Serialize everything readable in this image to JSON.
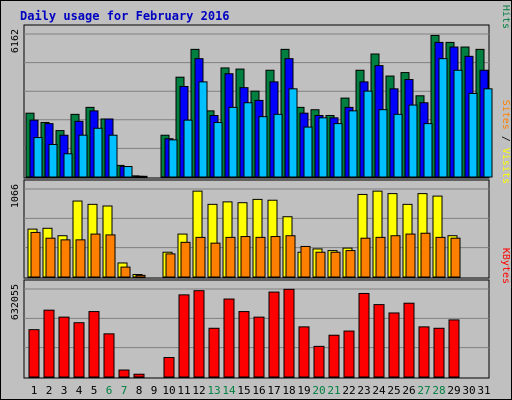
{
  "title": "Daily usage for February 2016",
  "colors": {
    "background": "#c0c0c0",
    "plot_bg": "#c0c0c0",
    "title": "#0000c0",
    "hits": "#008040",
    "files": "#0000ff",
    "pages": "#00c0ff",
    "visits": "#ffff00",
    "sites": "#ff8000",
    "kbytes": "#ff0000",
    "weekend_day": "#008040",
    "weekday": "#000000"
  },
  "chart_data": [
    {
      "type": "bar",
      "panel": "hits-files-pages",
      "ymax_label": "6162",
      "ylim": [
        0,
        6162
      ],
      "series_labels": [
        "Pages",
        "Files",
        "Hits"
      ],
      "categories": [
        "1",
        "2",
        "3",
        "4",
        "5",
        "6",
        "7",
        "8",
        "9",
        "10",
        "11",
        "12",
        "13",
        "14",
        "15",
        "16",
        "17",
        "18",
        "19",
        "20",
        "21",
        "22",
        "23",
        "24",
        "25",
        "26",
        "27",
        "28",
        "29",
        "30",
        "31"
      ],
      "series": [
        {
          "name": "Hits",
          "values": [
            2750,
            2350,
            2000,
            2700,
            3000,
            2500,
            500,
            50,
            0,
            1800,
            4300,
            5500,
            2850,
            4700,
            4650,
            3700,
            4600,
            5500,
            3000,
            2900,
            2650,
            3400,
            4600,
            5300,
            4350,
            4500,
            3500,
            6100,
            5800,
            5600,
            5500
          ]
        },
        {
          "name": "Files",
          "values": [
            2450,
            2300,
            1800,
            2400,
            2850,
            2500,
            450,
            30,
            0,
            1650,
            3900,
            5100,
            2650,
            4450,
            3850,
            3300,
            4100,
            5100,
            2750,
            2650,
            2550,
            3000,
            4100,
            4800,
            3800,
            4200,
            3200,
            5800,
            5600,
            5200,
            4600
          ]
        },
        {
          "name": "Pages",
          "values": [
            1700,
            1400,
            1000,
            1800,
            2100,
            1800,
            450,
            30,
            0,
            1600,
            2450,
            4100,
            2350,
            3000,
            3200,
            2600,
            2700,
            3800,
            2150,
            2550,
            2300,
            2850,
            3700,
            2900,
            2700,
            3100,
            2300,
            5100,
            4600,
            3600,
            3800
          ]
        }
      ]
    },
    {
      "type": "bar",
      "panel": "visits-sites",
      "ymax_label": "1066",
      "ylim": [
        0,
        1066
      ],
      "series_labels": [
        "Sites",
        "Visits"
      ],
      "categories": [
        "1",
        "2",
        "3",
        "4",
        "5",
        "6",
        "7",
        "8",
        "9",
        "10",
        "11",
        "12",
        "13",
        "14",
        "15",
        "16",
        "17",
        "18",
        "19",
        "20",
        "21",
        "22",
        "23",
        "24",
        "25",
        "26",
        "27",
        "28",
        "29",
        "30",
        "31"
      ],
      "series": [
        {
          "name": "Visits",
          "values": [
            580,
            590,
            500,
            920,
            880,
            860,
            170,
            30,
            0,
            300,
            520,
            1040,
            880,
            910,
            900,
            940,
            930,
            730,
            300,
            340,
            320,
            350,
            1000,
            1040,
            1010,
            880,
            1010,
            980,
            500,
            0,
            0
          ]
        },
        {
          "name": "Sites",
          "values": [
            540,
            470,
            450,
            450,
            520,
            510,
            120,
            20,
            0,
            280,
            420,
            480,
            410,
            480,
            490,
            480,
            490,
            500,
            370,
            300,
            300,
            320,
            470,
            480,
            500,
            520,
            530,
            480,
            470,
            0,
            0
          ]
        }
      ]
    },
    {
      "type": "bar",
      "panel": "kbytes",
      "ymax_label": "632055",
      "ylim": [
        0,
        632055
      ],
      "series_labels": [
        "KBytes"
      ],
      "categories": [
        "1",
        "2",
        "3",
        "4",
        "5",
        "6",
        "7",
        "8",
        "9",
        "10",
        "11",
        "12",
        "13",
        "14",
        "15",
        "16",
        "17",
        "18",
        "19",
        "20",
        "21",
        "22",
        "23",
        "24",
        "25",
        "26",
        "27",
        "28",
        "29",
        "30",
        "31"
      ],
      "series": [
        {
          "name": "KBytes",
          "values": [
            340000,
            480000,
            430000,
            390000,
            470000,
            310000,
            50000,
            20000,
            0,
            140000,
            590000,
            620000,
            350000,
            560000,
            470000,
            430000,
            610000,
            630000,
            360000,
            220000,
            300000,
            330000,
            600000,
            520000,
            460000,
            530000,
            360000,
            350000,
            410000,
            0,
            0
          ]
        }
      ]
    }
  ]
}
